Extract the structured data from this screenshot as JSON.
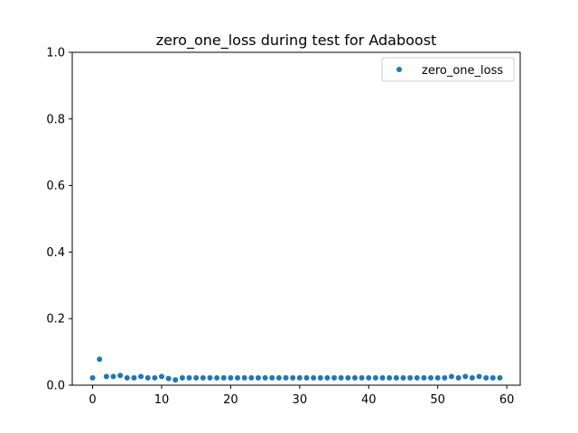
{
  "chart_data": {
    "type": "scatter",
    "title": "zero_one_loss during test for Adaboost",
    "xlabel": "",
    "ylabel": "",
    "xlim": [
      -2.95,
      61.95
    ],
    "ylim": [
      0.0,
      1.0
    ],
    "xticks": [
      "0",
      "10",
      "20",
      "30",
      "40",
      "50",
      "60"
    ],
    "yticks": [
      "0.0",
      "0.2",
      "0.4",
      "0.6",
      "0.8",
      "1.0"
    ],
    "grid": false,
    "legend_position": "top-right",
    "series": [
      {
        "name": "zero_one_loss",
        "color": "#1f77b4",
        "x": [
          0,
          1,
          2,
          3,
          4,
          5,
          6,
          7,
          8,
          9,
          10,
          11,
          12,
          13,
          14,
          15,
          16,
          17,
          18,
          19,
          20,
          21,
          22,
          23,
          24,
          25,
          26,
          27,
          28,
          29,
          30,
          31,
          32,
          33,
          34,
          35,
          36,
          37,
          38,
          39,
          40,
          41,
          42,
          43,
          44,
          45,
          46,
          47,
          48,
          49,
          50,
          51,
          52,
          53,
          54,
          55,
          56,
          57,
          58,
          59
        ],
        "y": [
          0.022,
          0.078,
          0.026,
          0.026,
          0.029,
          0.022,
          0.022,
          0.026,
          0.022,
          0.022,
          0.026,
          0.02,
          0.016,
          0.022,
          0.022,
          0.022,
          0.022,
          0.022,
          0.022,
          0.022,
          0.022,
          0.022,
          0.022,
          0.022,
          0.022,
          0.022,
          0.022,
          0.022,
          0.022,
          0.022,
          0.022,
          0.022,
          0.022,
          0.022,
          0.022,
          0.022,
          0.022,
          0.022,
          0.022,
          0.022,
          0.022,
          0.022,
          0.022,
          0.022,
          0.022,
          0.022,
          0.022,
          0.022,
          0.022,
          0.022,
          0.022,
          0.022,
          0.026,
          0.022,
          0.026,
          0.022,
          0.026,
          0.022,
          0.022,
          0.022
        ]
      }
    ]
  }
}
